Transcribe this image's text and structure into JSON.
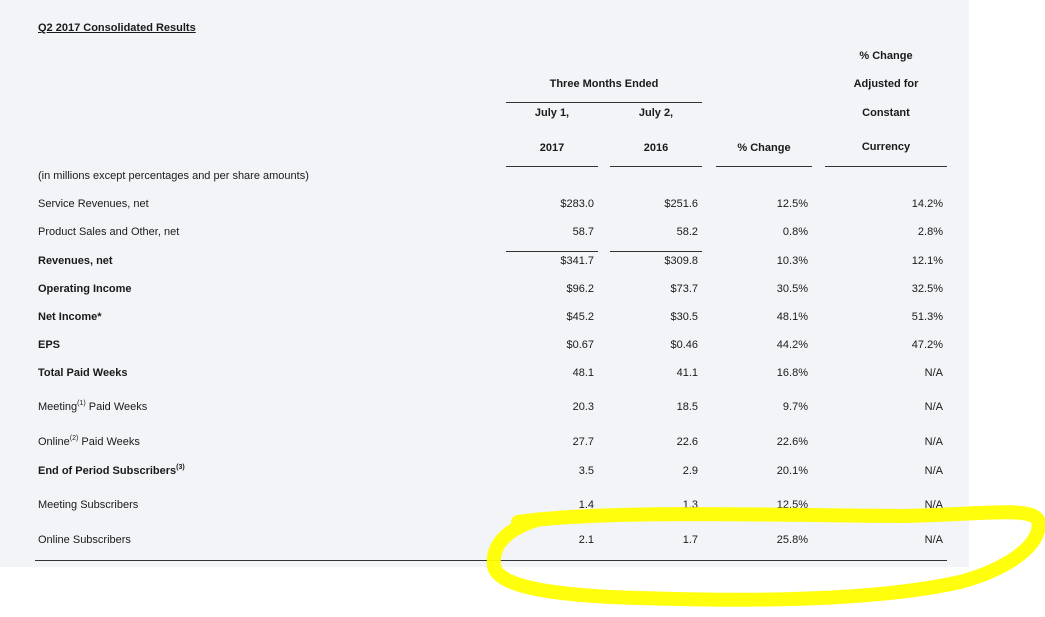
{
  "title": "Q2 2017 Consolidated Results",
  "header": {
    "group_label": "Three Months Ended",
    "col1_top": "July 1,",
    "col1_bottom": "2017",
    "col2_top": "July 2,",
    "col2_bottom": "2016",
    "col3": "% Change",
    "col4_line1": "% Change",
    "col4_line2": "Adjusted for",
    "col4_line3": "Constant",
    "col4_line4": "Currency"
  },
  "units_note": "(in millions except percentages and per share amounts)",
  "rows": [
    {
      "label": "Service Revenues, net",
      "sup": "",
      "c1": "$283.0",
      "c2": "$251.6",
      "c3": "12.5%",
      "c4": "14.2%"
    },
    {
      "label": "Product Sales and Other, net",
      "sup": "",
      "c1": "58.7",
      "c2": "58.2",
      "c3": "0.8%",
      "c4": "2.8%"
    },
    {
      "label": "Revenues, net",
      "sup": "",
      "c1": "$341.7",
      "c2": "$309.8",
      "c3": "10.3%",
      "c4": "12.1%"
    },
    {
      "label": "Operating Income",
      "sup": "",
      "c1": "$96.2",
      "c2": "$73.7",
      "c3": "30.5%",
      "c4": "32.5%"
    },
    {
      "label": "Net Income*",
      "sup": "",
      "c1": "$45.2",
      "c2": "$30.5",
      "c3": "48.1%",
      "c4": "51.3%"
    },
    {
      "label": "EPS",
      "sup": "",
      "c1": "$0.67",
      "c2": "$0.46",
      "c3": "44.2%",
      "c4": "47.2%"
    },
    {
      "label": "Total Paid Weeks",
      "sup": "",
      "c1": "48.1",
      "c2": "41.1",
      "c3": "16.8%",
      "c4": "N/A"
    },
    {
      "label": "Meeting",
      "sup": "(1)",
      "suffix": " Paid Weeks",
      "c1": "20.3",
      "c2": "18.5",
      "c3": "9.7%",
      "c4": "N/A"
    },
    {
      "label": "Online",
      "sup": "(2)",
      "suffix": " Paid Weeks",
      "c1": "27.7",
      "c2": "22.6",
      "c3": "22.6%",
      "c4": "N/A"
    },
    {
      "label": "End of Period Subscribers",
      "sup": "(3)",
      "suffix": "",
      "c1": "3.5",
      "c2": "2.9",
      "c3": "20.1%",
      "c4": "N/A"
    },
    {
      "label": "Meeting Subscribers",
      "sup": "",
      "c1": "1.4",
      "c2": "1.3",
      "c3": "12.5%",
      "c4": "N/A"
    },
    {
      "label": "Online Subscribers",
      "sup": "",
      "c1": "2.1",
      "c2": "1.7",
      "c3": "25.8%",
      "c4": "N/A"
    }
  ],
  "colors": {
    "panel": "#f2f4f7",
    "highlight": "#ffff00"
  }
}
